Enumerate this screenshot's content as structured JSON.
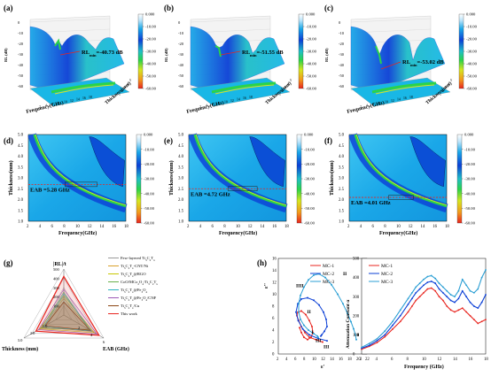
{
  "colorbar_ticks": [
    "0.000",
    "-10.00",
    "-20.00",
    "-30.00",
    "-40.00",
    "-50.00",
    "-60.00"
  ],
  "colors": {
    "red": "#e8251f",
    "green": "#2bd34a",
    "blue": "#0b3fd6",
    "cyan": "#19b7e6"
  },
  "panels_3d": [
    {
      "label": "(a)",
      "annotation": "RL",
      "annotation_sub": "min",
      "annotation_val": "=-40.73 dB",
      "zlabel": "RL (dB)",
      "xlabel": "Frequency(GHz)",
      "ylabel": "Thickness(mm)",
      "zticks": [
        "0",
        "-10",
        "-20",
        "-30",
        "-40",
        "-50",
        "-60"
      ],
      "xticks": [
        "2",
        "4",
        "6",
        "8",
        "10",
        "12",
        "14",
        "16",
        "18"
      ],
      "yticks": [
        "1",
        "2",
        "3",
        "4",
        "5"
      ]
    },
    {
      "label": "(b)",
      "annotation": "RL",
      "annotation_sub": "min",
      "annotation_val": "=-51.55 dB",
      "zlabel": "RL (dB)",
      "xlabel": "Frequency(GHz)",
      "ylabel": "Thickness(mm)",
      "zticks": [
        "0",
        "-10",
        "-20",
        "-30",
        "-40",
        "-50",
        "-60"
      ],
      "xticks": [
        "2",
        "4",
        "6",
        "8",
        "10",
        "12",
        "14",
        "16",
        "18"
      ],
      "yticks": [
        "1",
        "2",
        "3",
        "4",
        "5"
      ]
    },
    {
      "label": "(c)",
      "annotation": "RL",
      "annotation_sub": "min",
      "annotation_val": "=-53.02 dB",
      "zlabel": "RL (dB)",
      "xlabel": "Frequency(GHz)",
      "ylabel": "Thickness(mm)",
      "zticks": [
        "0",
        "-10",
        "-20",
        "-30",
        "-40",
        "-50",
        "-60"
      ],
      "xticks": [
        "2",
        "4",
        "6",
        "8",
        "10",
        "12",
        "14",
        "16",
        "18"
      ],
      "yticks": [
        "1",
        "2",
        "3",
        "4",
        "5"
      ]
    }
  ],
  "chart_data": [
    {
      "type": "heatmap",
      "label": "(d)",
      "xlabel": "Frequency(GHz)",
      "ylabel": "Thickness(mm)",
      "xlim": [
        2,
        18
      ],
      "ylim": [
        1.0,
        5.0
      ],
      "xticks": [
        "2",
        "4",
        "6",
        "8",
        "10",
        "12",
        "14",
        "16",
        "18"
      ],
      "yticks": [
        "1.0",
        "1.5",
        "2.0",
        "2.5",
        "3.0",
        "3.5",
        "4.0",
        "4.5",
        "5.0"
      ],
      "annotation": "EAB =5.28 GHz",
      "dashed_thickness": 2.7,
      "eab_range": [
        8.0,
        13.28
      ]
    },
    {
      "type": "heatmap",
      "label": "(e)",
      "xlabel": "Frequency(GHz)",
      "ylabel": "Thickness(mm)",
      "xlim": [
        2,
        18
      ],
      "ylim": [
        1.0,
        5.0
      ],
      "xticks": [
        "2",
        "4",
        "6",
        "8",
        "10",
        "12",
        "14",
        "16",
        "18"
      ],
      "yticks": [
        "1.0",
        "1.5",
        "2.0",
        "2.5",
        "3.0",
        "3.5",
        "4.0",
        "4.5",
        "5.0"
      ],
      "annotation": "EAB =4.72 GHz",
      "dashed_thickness": 2.5,
      "eab_range": [
        8.5,
        13.22
      ]
    },
    {
      "type": "heatmap",
      "label": "(f)",
      "xlabel": "Frequency(GHz)",
      "ylabel": "Thickness(mm)",
      "xlim": [
        2,
        18
      ],
      "ylim": [
        1.0,
        5.0
      ],
      "xticks": [
        "2",
        "4",
        "6",
        "8",
        "10",
        "12",
        "14",
        "16",
        "18"
      ],
      "yticks": [
        "1.0",
        "1.5",
        "2.0",
        "2.5",
        "3.0",
        "3.5",
        "4.0",
        "4.5",
        "5.0"
      ],
      "annotation": "EAB =4.01 GHz",
      "dashed_thickness": 2.1,
      "eab_range": [
        8.5,
        12.51
      ]
    },
    {
      "type": "radar",
      "label": "(g)",
      "axes": [
        "|RL|/t",
        "Thickness (mm)",
        "EAB (GHz)"
      ],
      "ticks_top": [
        "500",
        "400",
        "300",
        "200",
        "100"
      ],
      "ticks_left": [
        "3.0",
        "2.0",
        "1.0"
      ],
      "ticks_right": [
        "2",
        "4",
        "6"
      ],
      "series": [
        {
          "name": "Few-layered Ti3C2Tx",
          "name_main": "Few-layered Ti",
          "name_parts": [
            [
              "Ti",
              ""
            ],
            [
              "3",
              "sub"
            ],
            [
              "C",
              ""
            ],
            [
              "2",
              "sub"
            ],
            [
              "T",
              ""
            ],
            [
              "x",
              "sub"
            ]
          ],
          "color": "#9a9a9a",
          "values": [
            150,
            1.5,
            4.0
          ]
        },
        {
          "name": "Ti3C2Tx-CNT/Ni",
          "color": "#d9a02a",
          "values": [
            180,
            1.6,
            4.3
          ]
        },
        {
          "name": "Ti3C2Tx@RGO",
          "color": "#c8c800",
          "values": [
            210,
            1.8,
            4.6
          ]
        },
        {
          "name": "CoO/MCo2O4/Ti3C2Tx",
          "color": "#6ab04c",
          "values": [
            250,
            1.7,
            3.8
          ]
        },
        {
          "name": "Ti3C2Tx@Fe3O4",
          "color": "#2bb3c0",
          "values": [
            230,
            1.5,
            4.2
          ]
        },
        {
          "name": "Ti3C2Tx@Fe3O4/CNF",
          "color": "#9b59b6",
          "values": [
            280,
            1.9,
            5.0
          ]
        },
        {
          "name": "Ti3C2Tx/Cu",
          "color": "#8b4513",
          "values": [
            140,
            1.4,
            4.0
          ]
        },
        {
          "name": "This work",
          "color": "#e8251f",
          "values": [
            420,
            2.1,
            5.3
          ]
        }
      ],
      "legend_items": [
        {
          "parts": [
            [
              "Few-layered Ti",
              ""
            ],
            [
              "3",
              "s"
            ],
            [
              "C",
              ""
            ],
            [
              "2",
              "s"
            ],
            [
              "T",
              ""
            ],
            [
              "x",
              "s"
            ]
          ],
          "color": "#9a9a9a"
        },
        {
          "parts": [
            [
              "Ti",
              ""
            ],
            [
              "3",
              "s"
            ],
            [
              "C",
              ""
            ],
            [
              "2",
              "s"
            ],
            [
              "T",
              ""
            ],
            [
              "x",
              "s"
            ],
            [
              "-CNT/Ni",
              ""
            ]
          ],
          "color": "#d9a02a"
        },
        {
          "parts": [
            [
              "Ti",
              ""
            ],
            [
              "3",
              "s"
            ],
            [
              "C",
              ""
            ],
            [
              "2",
              "s"
            ],
            [
              "T",
              ""
            ],
            [
              "x",
              "s"
            ],
            [
              "@RGO",
              ""
            ]
          ],
          "color": "#c8c800"
        },
        {
          "parts": [
            [
              "CoO/MCo",
              ""
            ],
            [
              "2",
              "s"
            ],
            [
              "O",
              ""
            ],
            [
              "4",
              "s"
            ],
            [
              "/Ti",
              ""
            ],
            [
              "3",
              "s"
            ],
            [
              "C",
              ""
            ],
            [
              "2",
              "s"
            ],
            [
              "T",
              ""
            ],
            [
              "x",
              "s"
            ]
          ],
          "color": "#6ab04c"
        },
        {
          "parts": [
            [
              "Ti",
              ""
            ],
            [
              "3",
              "s"
            ],
            [
              "C",
              ""
            ],
            [
              "2",
              "s"
            ],
            [
              "T",
              ""
            ],
            [
              "x",
              "s"
            ],
            [
              "@Fe",
              ""
            ],
            [
              "3",
              "s"
            ],
            [
              "O",
              ""
            ],
            [
              "4",
              "s"
            ]
          ],
          "color": "#2bb3c0"
        },
        {
          "parts": [
            [
              "Ti",
              ""
            ],
            [
              "3",
              "s"
            ],
            [
              "C",
              ""
            ],
            [
              "2",
              "s"
            ],
            [
              "T",
              ""
            ],
            [
              "x",
              "s"
            ],
            [
              "@Fe",
              ""
            ],
            [
              "3",
              "s"
            ],
            [
              "O",
              ""
            ],
            [
              "4",
              "s"
            ],
            [
              "/CNF",
              ""
            ]
          ],
          "color": "#9b59b6"
        },
        {
          "parts": [
            [
              "Ti",
              ""
            ],
            [
              "3",
              "s"
            ],
            [
              "C",
              ""
            ],
            [
              "2",
              "s"
            ],
            [
              "T",
              ""
            ],
            [
              "x",
              "s"
            ],
            [
              "/Cu",
              ""
            ]
          ],
          "color": "#8b4513"
        },
        {
          "parts": [
            [
              "This work",
              ""
            ]
          ],
          "color": "#e8251f"
        }
      ]
    },
    {
      "type": "line",
      "label": "(h)",
      "xlabel": "ε'",
      "ylabel": "ε''",
      "xlim": [
        2,
        22
      ],
      "ylim": [
        0,
        16
      ],
      "xticks": [
        "2",
        "4",
        "6",
        "8",
        "10",
        "12",
        "14",
        "16",
        "18",
        "20",
        "22"
      ],
      "yticks": [
        "0",
        "2",
        "4",
        "6",
        "8",
        "10",
        "12",
        "14",
        "16"
      ],
      "series": [
        {
          "name": "MC-1",
          "color": "#e8251f",
          "marker": "circle",
          "x": [
            12.0,
            10.5,
            9.0,
            8.0,
            7.2,
            6.6,
            6.2,
            6.4,
            7.2,
            8.2,
            9.0,
            9.6,
            9.8,
            9.4,
            8.6,
            7.8,
            7.2,
            6.8
          ],
          "y": [
            2.0,
            2.4,
            2.8,
            3.6,
            4.6,
            5.6,
            6.4,
            7.0,
            7.2,
            6.6,
            5.6,
            4.6,
            3.6,
            2.8,
            2.4,
            2.8,
            3.6,
            4.4
          ]
        },
        {
          "name": "MC-2",
          "color": "#0b3fd6",
          "marker": "triangle",
          "x": [
            13.0,
            11.0,
            9.0,
            7.5,
            6.5,
            6.0,
            6.4,
            7.2,
            8.6,
            10.0,
            11.2,
            12.2,
            12.8,
            13.0,
            12.4,
            11.8,
            11.6
          ],
          "y": [
            2.2,
            2.6,
            3.2,
            4.2,
            5.6,
            7.0,
            8.4,
            9.2,
            9.4,
            9.0,
            8.2,
            7.0,
            5.8,
            4.6,
            3.8,
            3.2,
            3.0
          ]
        },
        {
          "name": "MC-3",
          "color": "#2b9fd4",
          "marker": "square",
          "x": [
            19.6,
            19.4,
            19.0,
            18.4,
            17.6,
            16.6,
            15.4,
            14.0,
            12.6,
            11.2,
            10.0,
            8.8,
            7.8,
            7.0,
            6.6,
            6.6,
            7.0,
            7.8,
            8.8,
            10.0,
            10.8,
            11.0
          ],
          "y": [
            2.4,
            3.2,
            4.2,
            5.4,
            6.8,
            8.4,
            10.0,
            11.6,
            12.8,
            13.4,
            13.2,
            12.4,
            11.2,
            9.8,
            8.4,
            7.0,
            5.8,
            4.8,
            4.0,
            3.4,
            3.0,
            2.8
          ]
        }
      ],
      "roman_labels": [
        "I",
        "II",
        "III",
        "IIII",
        "I",
        "II",
        "III"
      ]
    },
    {
      "type": "line",
      "label": "(i)",
      "xlabel": "Frequency (GHz)",
      "ylabel": "Attenuation Constant α",
      "xlim": [
        2,
        18
      ],
      "ylim": [
        0,
        500
      ],
      "xticks": [
        "2",
        "4",
        "6",
        "8",
        "10",
        "12",
        "14",
        "16",
        "18"
      ],
      "yticks": [
        "0",
        "100",
        "200",
        "300",
        "400",
        "500"
      ],
      "series": [
        {
          "name": "MC-1",
          "color": "#e8251f",
          "x": [
            2,
            3,
            4,
            5,
            6,
            7,
            8,
            8.5,
            9,
            9.5,
            10,
            10.5,
            11,
            11.5,
            12,
            12.5,
            13,
            13.5,
            14,
            14.5,
            15,
            15.5,
            16,
            16.5,
            17,
            17.5,
            18
          ],
          "y": [
            25,
            40,
            60,
            90,
            130,
            170,
            220,
            250,
            280,
            300,
            320,
            340,
            345,
            330,
            300,
            280,
            250,
            230,
            220,
            230,
            240,
            220,
            200,
            180,
            160,
            170,
            180
          ]
        },
        {
          "name": "MC-2",
          "color": "#0b3fd6",
          "x": [
            2,
            3,
            4,
            5,
            6,
            7,
            8,
            8.5,
            9,
            9.5,
            10,
            10.5,
            11,
            11.5,
            12,
            12.5,
            13,
            13.5,
            14,
            14.5,
            15,
            15.5,
            16,
            16.5,
            17,
            17.5,
            18
          ],
          "y": [
            30,
            45,
            70,
            100,
            150,
            200,
            260,
            290,
            320,
            340,
            360,
            375,
            380,
            370,
            340,
            320,
            300,
            280,
            270,
            290,
            330,
            300,
            270,
            250,
            240,
            270,
            310
          ]
        },
        {
          "name": "MC-3",
          "color": "#2b9fd4",
          "x": [
            2,
            3,
            4,
            5,
            6,
            7,
            8,
            8.5,
            9,
            9.5,
            10,
            10.5,
            11,
            11.5,
            12,
            12.5,
            13,
            13.5,
            14,
            14.5,
            15,
            15.5,
            16,
            16.5,
            17,
            17.5,
            18
          ],
          "y": [
            35,
            55,
            80,
            120,
            170,
            230,
            290,
            320,
            350,
            370,
            390,
            405,
            410,
            395,
            370,
            350,
            330,
            310,
            300,
            330,
            390,
            360,
            330,
            320,
            340,
            400,
            440
          ]
        }
      ]
    }
  ]
}
